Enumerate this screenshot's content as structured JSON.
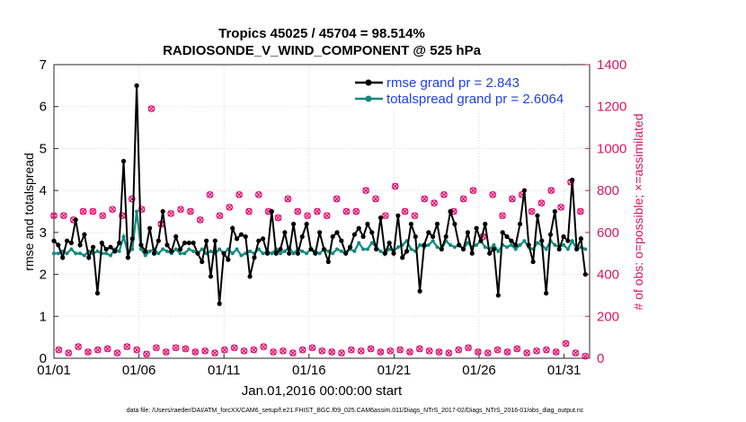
{
  "chart_data": {
    "type": "line",
    "title": "Tropics 45025 / 45704 = 98.514%",
    "subtitle": "RADIOSONDE_V_WIND_COMPONENT @ 525 hPa",
    "xlabel": "Jan.01,2016 00:00:00 start",
    "ylabel": "rmse and totalspread",
    "ylabel_right": "# of obs: o=possible; ×=assimilated",
    "footnote": "data file: /Users/raeder/DAI/ATM_forcXX/CAM6_setup/f.e21.FHIST_BGC.f09_025.CAM6assim.011/Diags_NTrS_2017-02/Diags_NTrS_2016-01/obs_diag_output.nc",
    "xlim": [
      0,
      31.5
    ],
    "ylim": [
      0,
      7
    ],
    "ylim_right": [
      0,
      1400
    ],
    "grid": true,
    "legend_location": "top-right",
    "x_ticks": [
      {
        "label": "01/01",
        "value": 0
      },
      {
        "label": "01/06",
        "value": 5
      },
      {
        "label": "01/11",
        "value": 10
      },
      {
        "label": "01/16",
        "value": 15
      },
      {
        "label": "01/21",
        "value": 20
      },
      {
        "label": "01/26",
        "value": 25
      },
      {
        "label": "01/31",
        "value": 30
      }
    ],
    "y_ticks": [
      "0",
      "1",
      "2",
      "3",
      "4",
      "5",
      "6",
      "7"
    ],
    "y_ticks_right": [
      "0",
      "200",
      "400",
      "600",
      "800",
      "1000",
      "1200",
      "1400"
    ],
    "series": [
      {
        "name": "rmse grand pr = 2.843",
        "color": "#000000",
        "axis": "left",
        "values": [
          2.8,
          2.7,
          2.4,
          2.8,
          2.75,
          3.3,
          2.7,
          2.95,
          2.4,
          2.65,
          1.55,
          2.75,
          2.6,
          2.65,
          2.55,
          2.75,
          4.7,
          2.4,
          2.85,
          6.5,
          2.7,
          2.55,
          3.1,
          2.5,
          2.8,
          3.5,
          2.7,
          2.55,
          2.9,
          2.6,
          2.75,
          2.75,
          2.75,
          2.5,
          2.3,
          2.8,
          1.95,
          2.8,
          1.3,
          2.5,
          2.35,
          3.1,
          2.85,
          2.95,
          2.9,
          1.95,
          2.4,
          2.8,
          2.85,
          2.5,
          3.5,
          2.5,
          2.6,
          3.0,
          2.5,
          3.2,
          2.5,
          2.9,
          3.2,
          2.6,
          2.5,
          3.0,
          2.6,
          2.3,
          2.9,
          3.0,
          2.8,
          2.5,
          2.65,
          2.95,
          3.1,
          2.9,
          3.2,
          3.0,
          2.6,
          3.35,
          2.5,
          2.75,
          2.5,
          3.4,
          2.4,
          2.55,
          3.2,
          2.9,
          1.6,
          2.7,
          3.0,
          2.9,
          3.2,
          2.6,
          2.9,
          3.5,
          3.2,
          2.7,
          2.6,
          3.0,
          2.5,
          3.1,
          2.8,
          3.2,
          2.5,
          2.6,
          1.5,
          3.0,
          2.9,
          2.8,
          2.7,
          3.2,
          4.0,
          2.7,
          2.3,
          3.4,
          2.8,
          1.55,
          2.95,
          3.5,
          2.6,
          2.9,
          2.8,
          4.25,
          2.6,
          2.85,
          2.0
        ],
        "values_note": "6-hourly samples approximated"
      },
      {
        "name": "totalspread grand pr = 2.6064",
        "color": "#0f8a80",
        "axis": "left",
        "values": [
          2.5,
          2.5,
          2.55,
          2.5,
          2.6,
          2.5,
          2.5,
          2.45,
          2.55,
          2.5,
          2.55,
          2.5,
          2.5,
          2.45,
          2.6,
          2.55,
          2.9,
          2.5,
          2.6,
          3.5,
          2.6,
          2.45,
          2.55,
          2.6,
          2.5,
          2.6,
          2.55,
          2.5,
          2.6,
          2.5,
          2.5,
          2.6,
          2.55,
          2.5,
          2.6,
          2.5,
          2.55,
          2.5,
          2.6,
          2.5,
          2.6,
          2.5,
          2.6,
          2.45,
          2.5,
          2.55,
          2.5,
          2.6,
          2.5,
          2.55,
          2.5,
          2.6,
          2.5,
          2.55,
          2.65,
          2.5,
          2.6,
          2.55,
          2.5,
          2.6,
          2.55,
          2.5,
          2.6,
          2.55,
          2.5,
          2.6,
          2.55,
          2.5,
          2.6,
          2.55,
          2.75,
          2.6,
          2.6,
          2.75,
          2.65,
          2.55,
          2.5,
          2.6,
          2.55,
          2.65,
          2.7,
          2.8,
          2.6,
          2.55,
          2.7,
          2.65,
          2.7,
          2.8,
          2.65,
          2.6,
          2.8,
          2.7,
          2.65,
          2.7,
          2.6,
          2.75,
          2.65,
          2.7,
          2.8,
          2.65,
          2.6,
          2.7,
          2.55,
          2.7,
          2.65,
          2.7,
          2.6,
          2.7,
          2.8,
          2.65,
          2.6,
          2.75,
          2.7,
          2.6,
          2.8,
          2.7,
          2.65,
          2.7,
          2.6,
          2.8,
          2.6,
          2.65,
          2.6
        ]
      },
      {
        "name": "possible obs",
        "color": "#e0106e",
        "axis": "right",
        "marker": "o",
        "values": [
          680,
          40,
          680,
          25,
          660,
          55,
          700,
          30,
          700,
          40,
          680,
          45,
          710,
          25,
          680,
          55,
          760,
          40,
          710,
          20,
          1190,
          50,
          640,
          30,
          690,
          50,
          710,
          45,
          700,
          30,
          660,
          35,
          780,
          25,
          680,
          40,
          720,
          50,
          780,
          35,
          700,
          40,
          780,
          55,
          700,
          30,
          670,
          35,
          760,
          25,
          700,
          40,
          680,
          50,
          700,
          35,
          680,
          30,
          760,
          25,
          700,
          40,
          700,
          35,
          800,
          45,
          760,
          30,
          680,
          35,
          820,
          40,
          700,
          30,
          680,
          45,
          760,
          35,
          740,
          30,
          780,
          25,
          700,
          40,
          760,
          50,
          800,
          30,
          580,
          25,
          780,
          40,
          680,
          30,
          760,
          45,
          780,
          25,
          700,
          35,
          740,
          40,
          800,
          30,
          720,
          70,
          840,
          25,
          700,
          10
        ]
      }
    ]
  }
}
